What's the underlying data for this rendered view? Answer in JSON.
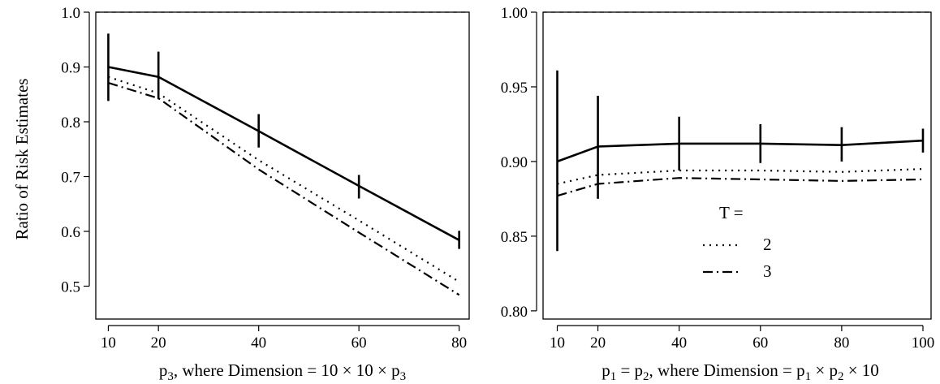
{
  "chart_data": [
    {
      "type": "line",
      "ylabel": "Ratio of Risk Estimates",
      "xlabel_parts": [
        {
          "t": "p",
          "sub": false
        },
        {
          "t": "3",
          "sub": true
        },
        {
          "t": ", where Dimension = 10 × 10 × p",
          "sub": false
        },
        {
          "t": "3",
          "sub": true
        }
      ],
      "x": [
        10,
        20,
        40,
        60,
        80
      ],
      "x_ticks": [
        "10",
        "20",
        "40",
        "60",
        "80"
      ],
      "y_ticks": [
        "0.5",
        "0.6",
        "0.7",
        "0.8",
        "0.9",
        "1.0"
      ],
      "xlim": [
        7.5,
        82
      ],
      "ylim": [
        0.44,
        1.0
      ],
      "reference_line": 1.0,
      "series": [
        {
          "style": "solid",
          "values": [
            0.9,
            0.882,
            0.783,
            0.683,
            0.584
          ],
          "error_low": [
            0.838,
            0.841,
            0.753,
            0.66,
            0.568
          ],
          "error_high": [
            0.961,
            0.928,
            0.814,
            0.703,
            0.601
          ]
        },
        {
          "name": "2",
          "style": "dotted",
          "values": [
            0.882,
            0.852,
            0.73,
            0.62,
            0.508
          ]
        },
        {
          "name": "3",
          "style": "dotdash",
          "values": [
            0.871,
            0.843,
            0.713,
            0.598,
            0.484
          ]
        }
      ]
    },
    {
      "type": "line",
      "ylabel": "",
      "xlabel_parts": [
        {
          "t": "p",
          "sub": false
        },
        {
          "t": "1",
          "sub": true
        },
        {
          "t": " = p",
          "sub": false
        },
        {
          "t": "2",
          "sub": true
        },
        {
          "t": ", where Dimension = p",
          "sub": false
        },
        {
          "t": "1",
          "sub": true
        },
        {
          "t": " × p",
          "sub": false
        },
        {
          "t": "2",
          "sub": true
        },
        {
          "t": " × 10",
          "sub": false
        }
      ],
      "x": [
        10,
        20,
        40,
        60,
        80,
        100
      ],
      "x_ticks": [
        "10",
        "20",
        "40",
        "60",
        "80",
        "100"
      ],
      "y_ticks": [
        "0.80",
        "0.85",
        "0.90",
        "0.95",
        "1.00"
      ],
      "xlim": [
        6.5,
        102
      ],
      "ylim": [
        0.7945,
        1.0
      ],
      "reference_line": 1.0,
      "legend": {
        "title": "T =",
        "placement": "center"
      },
      "series": [
        {
          "style": "solid",
          "values": [
            0.9,
            0.91,
            0.912,
            0.912,
            0.911,
            0.914
          ],
          "error_low": [
            0.84,
            0.875,
            0.894,
            0.899,
            0.9,
            0.906
          ],
          "error_high": [
            0.961,
            0.944,
            0.93,
            0.925,
            0.923,
            0.922
          ]
        },
        {
          "name": "2",
          "style": "dotted",
          "values": [
            0.885,
            0.891,
            0.894,
            0.894,
            0.893,
            0.895
          ]
        },
        {
          "name": "3",
          "style": "dotdash",
          "values": [
            0.877,
            0.885,
            0.889,
            0.888,
            0.887,
            0.888
          ]
        }
      ]
    }
  ]
}
